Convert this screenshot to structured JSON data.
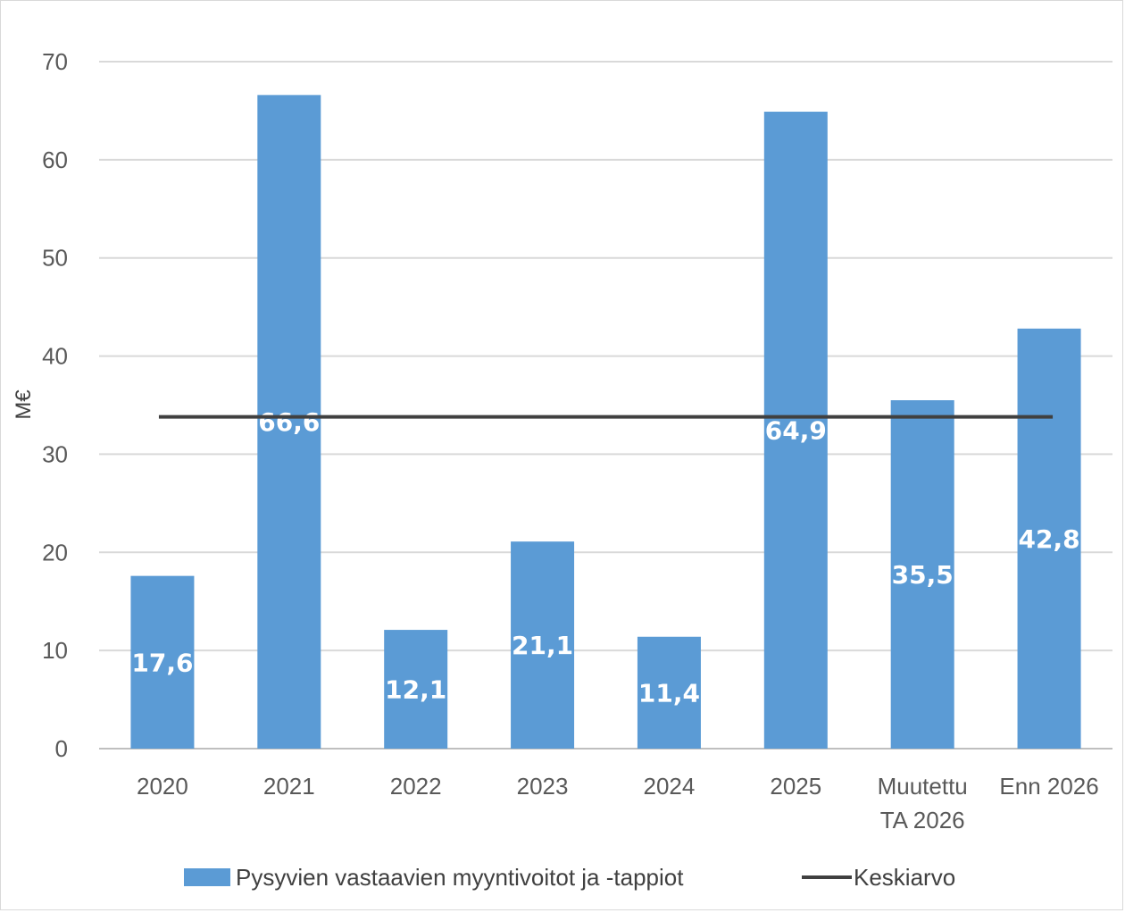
{
  "chart_data": {
    "type": "bar",
    "categories": [
      "2020",
      "2021",
      "2022",
      "2023",
      "2024",
      "2025",
      [
        "Muutettu",
        "TA 2026"
      ],
      "Enn 2026"
    ],
    "series": [
      {
        "name": "Pysyvien vastaavien myyntivoitot ja -tappiot",
        "values": [
          17.6,
          66.6,
          12.1,
          21.1,
          11.4,
          64.9,
          35.5,
          42.8
        ],
        "labels": [
          "17,6",
          "66,6",
          "12,1",
          "21,1",
          "11,4",
          "64,9",
          "35,5",
          "42,8"
        ],
        "color": "#5b9bd5"
      },
      {
        "name": "Keskiarvo",
        "type": "line",
        "value": 33.8,
        "color": "#404040"
      }
    ],
    "ylabel": "M€",
    "ylim": [
      0,
      70
    ],
    "yticks": [
      0,
      10,
      20,
      30,
      40,
      50,
      60,
      70
    ],
    "grid": true,
    "legend": "bottom"
  }
}
